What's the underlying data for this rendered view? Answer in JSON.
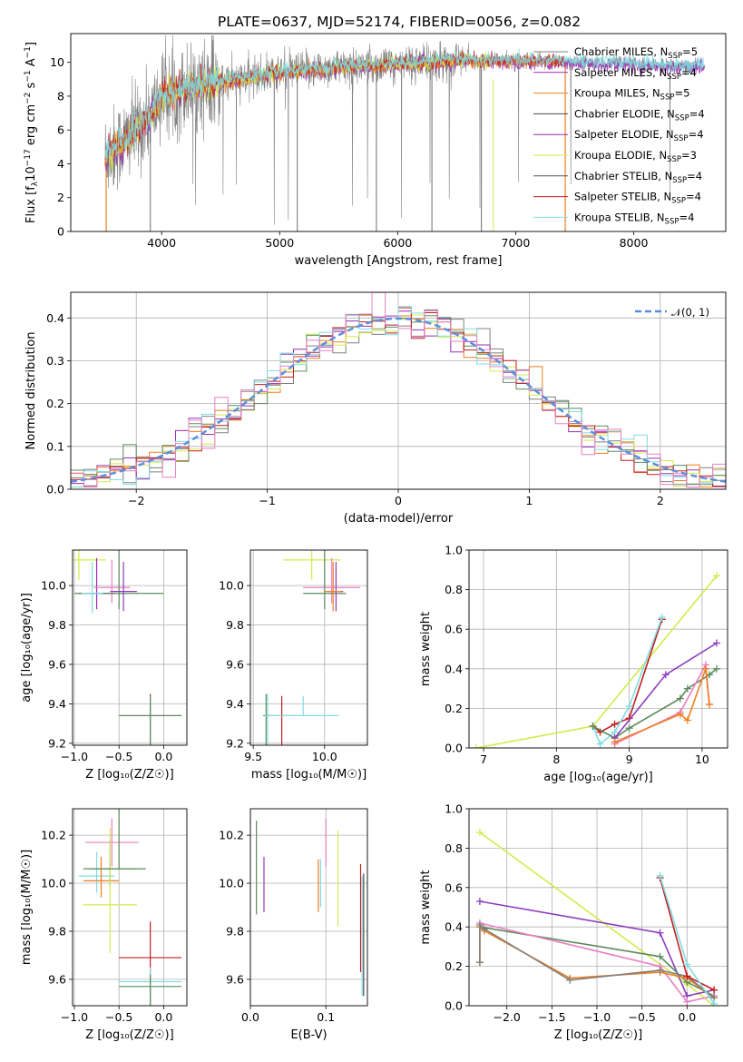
{
  "figure": {
    "title": "PLATE=0637, MJD=52174, FIBERID=0056, z=0.082"
  },
  "colors": {
    "chabrier_miles": "#808080",
    "salpeter_miles": "#9b2db5",
    "kroupa_miles": "#ee7f1f",
    "chabrier_elodie": "#4a4a4a",
    "salpeter_elodie": "#9b2db5",
    "kroupa_elodie": "#d4ea4b",
    "chabrier_stelib": "#555555",
    "salpeter_stelib": "#c41e1e",
    "kroupa_stelib": "#7fdde3",
    "green": "#5c8b5c",
    "pink": "#ea80c5",
    "darkred": "#a40000",
    "blue_dashed": "#5b8fdc",
    "purple2": "#8d3dbf"
  },
  "chart_data": [
    {
      "id": "spectrum",
      "type": "line",
      "title": "PLATE=0637, MJD=52174, FIBERID=0056, z=0.082",
      "xlabel": "wavelength [Angstrom, rest frame]",
      "ylabel_parts": {
        "a": "Flux [f",
        "b": "λ",
        "c": "10",
        "d": "−17",
        "e": " erg cm",
        "f": "−2",
        "g": " s",
        "h": "−1",
        "i": " A",
        "j": "−1",
        "k": "]"
      },
      "xlim": [
        3230,
        8780
      ],
      "ylim": [
        0,
        11.7
      ],
      "xticks": [
        4000,
        5000,
        6000,
        7000,
        8000
      ],
      "yticks": [
        0,
        2,
        4,
        6,
        8,
        10
      ],
      "x_range": [
        3520,
        8600
      ],
      "continuum": [
        [
          3520,
          4.5
        ],
        [
          3700,
          5.4
        ],
        [
          3900,
          6.8
        ],
        [
          4000,
          8.0
        ],
        [
          4300,
          8.7
        ],
        [
          4600,
          8.9
        ],
        [
          5000,
          9.4
        ],
        [
          5500,
          9.7
        ],
        [
          6000,
          9.9
        ],
        [
          6500,
          10.1
        ],
        [
          7000,
          10.1
        ],
        [
          7500,
          10.0
        ],
        [
          8000,
          9.9
        ],
        [
          8600,
          9.7
        ]
      ],
      "legend": [
        {
          "label": "Chabrier MILES, N",
          "sub": "SSP",
          "tail": "=5",
          "color": "chabrier_miles"
        },
        {
          "label": "Salpeter MILES, N",
          "sub": "SSP",
          "tail": "=4",
          "color": "salpeter_miles"
        },
        {
          "label": "Kroupa MILES, N",
          "sub": "SSP",
          "tail": "=5",
          "color": "kroupa_miles"
        },
        {
          "label": "Chabrier ELODIE, N",
          "sub": "SSP",
          "tail": "=4",
          "color": "chabrier_elodie"
        },
        {
          "label": "Salpeter ELODIE, N",
          "sub": "SSP",
          "tail": "=4",
          "color": "salpeter_elodie"
        },
        {
          "label": "Kroupa ELODIE, N",
          "sub": "SSP",
          "tail": "=3",
          "color": "kroupa_elodie"
        },
        {
          "label": "Chabrier STELIB, N",
          "sub": "SSP",
          "tail": "=4",
          "color": "chabrier_stelib"
        },
        {
          "label": "Salpeter STELIB, N",
          "sub": "SSP",
          "tail": "=4",
          "color": "salpeter_stelib"
        },
        {
          "label": "Kroupa STELIB, N",
          "sub": "SSP",
          "tail": "=4",
          "color": "kroupa_stelib"
        }
      ]
    },
    {
      "id": "residuals",
      "type": "histogram",
      "xlabel": "(data-model)/error",
      "ylabel": "Normed distribution",
      "xlim": [
        -2.5,
        2.5
      ],
      "ylim": [
        0,
        0.46
      ],
      "xticks": [
        -2,
        -1,
        0,
        1,
        2
      ],
      "yticks": [
        0.0,
        0.1,
        0.2,
        0.3,
        0.4
      ],
      "bin_width": 0.1,
      "legend": [
        {
          "label": "𝒩(0, 1)",
          "color": "blue_dashed"
        }
      ],
      "series_colors": [
        "chabrier_miles",
        "salpeter_miles",
        "kroupa_miles",
        "kroupa_elodie",
        "green",
        "salpeter_stelib",
        "kroupa_stelib",
        "pink"
      ]
    },
    {
      "id": "age_vs_Z",
      "type": "errorbar",
      "xlabel": "Z [log₁₀(Z/Z☉)]",
      "ylabel": "age  [log₁₀(age/yr)]",
      "xlim": [
        -1.02,
        0.26
      ],
      "ylim": [
        9.19,
        10.18
      ],
      "xticks": [
        -1.0,
        -0.5,
        0.0
      ],
      "yticks": [
        9.2,
        9.4,
        9.6,
        9.8,
        10.0
      ],
      "points": [
        {
          "x": -0.95,
          "y": 10.13,
          "xerr": 0.3,
          "yerr": [
            0.59,
            0.1
          ],
          "color": "kroupa_elodie"
        },
        {
          "x": -0.75,
          "y": 9.96,
          "xerr": 0.2,
          "yerr": [
            0.18,
            0.08
          ],
          "color": "salpeter_miles"
        },
        {
          "x": -0.58,
          "y": 9.99,
          "xerr": 0.2,
          "yerr": [
            0.14,
            0.08
          ],
          "color": "pink"
        },
        {
          "x": -0.5,
          "y": 9.96,
          "xerr": 0.5,
          "yerr": [
            0.45,
            0.08
          ],
          "color": "green"
        },
        {
          "x": -0.45,
          "y": 9.97,
          "xerr": 0.15,
          "yerr": [
            0.15,
            0.1
          ],
          "color": "purple2"
        },
        {
          "x": -0.8,
          "y": 9.96,
          "xerr": 0.12,
          "yerr": [
            0.16,
            0.1
          ],
          "color": "kroupa_stelib"
        },
        {
          "x": -0.15,
          "y": 9.34,
          "xerr": 0.35,
          "yerr": [
            0.11,
            0.72
          ],
          "color": "salpeter_stelib"
        },
        {
          "x": -0.15,
          "y": 9.34,
          "xerr": 0.35,
          "yerr": [
            0.1,
            0.72
          ],
          "color": "kroupa_stelib"
        },
        {
          "x": -0.15,
          "y": 9.34,
          "xerr": 0.35,
          "yerr": [
            0.1,
            0.66
          ],
          "color": "green"
        }
      ]
    },
    {
      "id": "age_vs_mass",
      "type": "errorbar",
      "xlabel": "mass [log₁₀(M/M☉)]",
      "ylabel": "",
      "xlim": [
        9.48,
        10.3
      ],
      "ylim": [
        9.19,
        10.18
      ],
      "xticks": [
        9.5,
        10.0
      ],
      "yticks": [
        9.2,
        9.4,
        9.6,
        9.8,
        10.0
      ],
      "points": [
        {
          "x": 9.91,
          "y": 10.13,
          "xerr": 0.2,
          "yerr": [
            0.59,
            0.1
          ],
          "color": "kroupa_elodie"
        },
        {
          "x": 10.05,
          "y": 9.99,
          "xerr": 0.2,
          "yerr": [
            0.15,
            0.08
          ],
          "color": "pink"
        },
        {
          "x": 10.0,
          "y": 9.96,
          "xerr": 0.15,
          "yerr": [
            0.45,
            0.08
          ],
          "color": "green"
        },
        {
          "x": 10.08,
          "y": 9.97,
          "xerr": 0.05,
          "yerr": [
            0.15,
            0.1
          ],
          "color": "purple2"
        },
        {
          "x": 10.06,
          "y": 9.97,
          "xerr": 0.06,
          "yerr": [
            0.15,
            0.1
          ],
          "color": "kroupa_miles"
        },
        {
          "x": 9.59,
          "y": 9.34,
          "xerr": 0.02,
          "yerr": [
            0.11,
            0.72
          ],
          "color": "green"
        },
        {
          "x": 9.6,
          "y": 9.34,
          "xerr": 0.02,
          "yerr": [
            0.11,
            0.72
          ],
          "color": "kroupa_stelib"
        },
        {
          "x": 9.7,
          "y": 9.34,
          "xerr": 0.1,
          "yerr": [
            0.1,
            0.65
          ],
          "color": "salpeter_stelib"
        },
        {
          "x": 9.85,
          "y": 9.34,
          "xerr": 0.25,
          "yerr": [
            0.1,
            0.0
          ],
          "color": "kroupa_stelib"
        }
      ]
    },
    {
      "id": "weight_vs_age",
      "type": "line",
      "xlabel": "age  [log₁₀(age/yr)]",
      "ylabel": "mass weight",
      "xlim": [
        6.8,
        10.35
      ],
      "ylim": [
        0,
        1.0
      ],
      "xticks": [
        7,
        8,
        9,
        10
      ],
      "yticks": [
        0.0,
        0.2,
        0.4,
        0.6,
        0.8,
        1.0
      ],
      "series": [
        {
          "color": "kroupa_elodie",
          "x": [
            6.9,
            8.5,
            10.2
          ],
          "y": [
            0.0,
            0.11,
            0.87
          ]
        },
        {
          "color": "salpeter_stelib",
          "x": [
            8.5,
            8.6,
            8.8,
            9.0,
            9.45
          ],
          "y": [
            0.11,
            0.08,
            0.12,
            0.15,
            0.65
          ]
        },
        {
          "color": "kroupa_stelib",
          "x": [
            8.5,
            8.6,
            8.8,
            9.0,
            9.45
          ],
          "y": [
            0.11,
            0.02,
            0.08,
            0.21,
            0.66
          ]
        },
        {
          "color": "green",
          "x": [
            8.5,
            8.8,
            9.0,
            9.7,
            9.8,
            10.1,
            10.2
          ],
          "y": [
            0.11,
            0.05,
            0.1,
            0.25,
            0.3,
            0.37,
            0.4
          ]
        },
        {
          "color": "purple2",
          "x": [
            8.8,
            9.5,
            10.2
          ],
          "y": [
            0.05,
            0.37,
            0.53
          ]
        },
        {
          "color": "pink",
          "x": [
            8.8,
            9.7,
            10.05,
            10.1
          ],
          "y": [
            0.02,
            0.18,
            0.42,
            0.22
          ]
        },
        {
          "color": "kroupa_miles",
          "x": [
            8.8,
            9.7,
            9.8,
            10.05,
            10.1
          ],
          "y": [
            0.03,
            0.17,
            0.14,
            0.4,
            0.22
          ]
        }
      ]
    },
    {
      "id": "mass_vs_Z",
      "type": "errorbar",
      "xlabel": "Z [log₁₀(Z/Z☉)]",
      "ylabel": "mass [log₁₀(M/M☉)]",
      "xlim": [
        -1.02,
        0.26
      ],
      "ylim": [
        9.49,
        10.31
      ],
      "xticks": [
        -1.0,
        -0.5,
        0.0
      ],
      "yticks": [
        9.6,
        9.8,
        10.0,
        10.2
      ],
      "points": [
        {
          "x": -0.58,
          "y": 10.17,
          "xerr": 0.3,
          "yerr": [
            0.1,
            0.1
          ],
          "color": "pink"
        },
        {
          "x": -0.6,
          "y": 10.06,
          "xerr": 0.3,
          "yerr": [
            0.12,
            0.07
          ],
          "color": "green"
        },
        {
          "x": -0.75,
          "y": 10.03,
          "xerr": 0.2,
          "yerr": [
            0.1,
            0.07
          ],
          "color": "kroupa_stelib"
        },
        {
          "x": -0.7,
          "y": 10.01,
          "xerr": 0.2,
          "yerr": [
            0.1,
            0.07
          ],
          "color": "kroupa_miles"
        },
        {
          "x": -0.6,
          "y": 9.91,
          "xerr": 0.3,
          "yerr": [
            0.32,
            0.2
          ],
          "color": "kroupa_elodie"
        },
        {
          "x": -0.5,
          "y": 10.06,
          "xerr": 0.3,
          "yerr": [
            0.32,
            0.0
          ],
          "color": "green"
        },
        {
          "x": -0.15,
          "y": 9.69,
          "xerr": 0.35,
          "yerr": [
            0.15,
            0.38
          ],
          "color": "salpeter_stelib"
        },
        {
          "x": -0.15,
          "y": 9.59,
          "xerr": 0.35,
          "yerr": [
            0.06,
            0.44
          ],
          "color": "kroupa_stelib"
        },
        {
          "x": -0.15,
          "y": 9.57,
          "xerr": 0.35,
          "yerr": [
            0.05,
            0.45
          ],
          "color": "green"
        }
      ]
    },
    {
      "id": "mass_vs_ebv",
      "type": "errorbar",
      "xlabel": "E(B-V)",
      "ylabel": "",
      "xlim": [
        0.0,
        0.155
      ],
      "ylim": [
        9.49,
        10.31
      ],
      "xticks": [
        0.0,
        0.1
      ],
      "yticks": [
        9.6,
        9.8,
        10.0,
        10.2
      ],
      "points": [
        {
          "x": 0.008,
          "y": 10.0,
          "xerr": 0,
          "yerr": [
            0.26,
            0.13
          ],
          "color": "green"
        },
        {
          "x": 0.018,
          "y": 10.0,
          "xerr": 0,
          "yerr": [
            0.11,
            0.12
          ],
          "color": "purple2"
        },
        {
          "x": 0.09,
          "y": 10.0,
          "xerr": 0,
          "yerr": [
            0.1,
            0.12
          ],
          "color": "kroupa_miles"
        },
        {
          "x": 0.093,
          "y": 10.0,
          "xerr": 0,
          "yerr": [
            0.1,
            0.1
          ],
          "color": "kroupa_stelib"
        },
        {
          "x": 0.1,
          "y": 10.17,
          "xerr": 0,
          "yerr": [
            0.1,
            0.1
          ],
          "color": "pink"
        },
        {
          "x": 0.116,
          "y": 9.9,
          "xerr": 0,
          "yerr": [
            0.32,
            0.08
          ],
          "color": "kroupa_elodie"
        },
        {
          "x": 0.146,
          "y": 9.85,
          "xerr": 0,
          "yerr": [
            0.23,
            0.22
          ],
          "color": "salpeter_stelib"
        },
        {
          "x": 0.148,
          "y": 9.78,
          "xerr": 0,
          "yerr": [
            0.25,
            0.25
          ],
          "color": "kroupa_stelib"
        },
        {
          "x": 0.15,
          "y": 9.78,
          "xerr": 0,
          "yerr": [
            0.26,
            0.25
          ],
          "color": "chabrier_elodie"
        }
      ]
    },
    {
      "id": "weight_vs_Z",
      "type": "line",
      "xlabel": "Z [log₁₀(Z/Z☉)]",
      "ylabel": "mass weight",
      "xlim": [
        -2.42,
        0.45
      ],
      "ylim": [
        0,
        1.0
      ],
      "xticks": [
        -2.0,
        -1.5,
        -1.0,
        -0.5,
        0.0
      ],
      "yticks": [
        0.0,
        0.2,
        0.4,
        0.6,
        0.8,
        1.0
      ],
      "series": [
        {
          "color": "kroupa_elodie",
          "x": [
            -2.3,
            0.0,
            0.3
          ],
          "y": [
            0.88,
            0.11,
            0.0
          ]
        },
        {
          "color": "purple2",
          "x": [
            -2.3,
            -0.3,
            0.0,
            0.3
          ],
          "y": [
            0.53,
            0.37,
            0.05,
            0.08
          ]
        },
        {
          "color": "green",
          "x": [
            -2.3,
            -0.3,
            0.0,
            0.3
          ],
          "y": [
            0.4,
            0.25,
            0.12,
            0.05
          ]
        },
        {
          "color": "pink",
          "x": [
            -2.3,
            -0.3,
            0.0,
            0.3
          ],
          "y": [
            0.42,
            0.2,
            0.02,
            0.05
          ]
        },
        {
          "color": "kroupa_miles",
          "x": [
            -2.3,
            -2.3,
            -2.25,
            -1.3,
            -0.3,
            0.0,
            0.3
          ],
          "y": [
            0.22,
            0.4,
            0.38,
            0.14,
            0.17,
            0.14,
            0.04
          ]
        },
        {
          "color": "chabrier_miles",
          "x": [
            -2.3,
            -2.3,
            -2.25,
            -1.3,
            -0.3,
            0.0,
            0.3
          ],
          "y": [
            0.22,
            0.41,
            0.39,
            0.13,
            0.18,
            0.15,
            0.04
          ]
        },
        {
          "color": "salpeter_stelib",
          "x": [
            -0.3,
            0.0,
            0.3
          ],
          "y": [
            0.65,
            0.15,
            0.08
          ]
        },
        {
          "color": "kroupa_stelib",
          "x": [
            -0.3,
            0.0,
            0.3
          ],
          "y": [
            0.66,
            0.21,
            0.01
          ]
        }
      ]
    }
  ]
}
